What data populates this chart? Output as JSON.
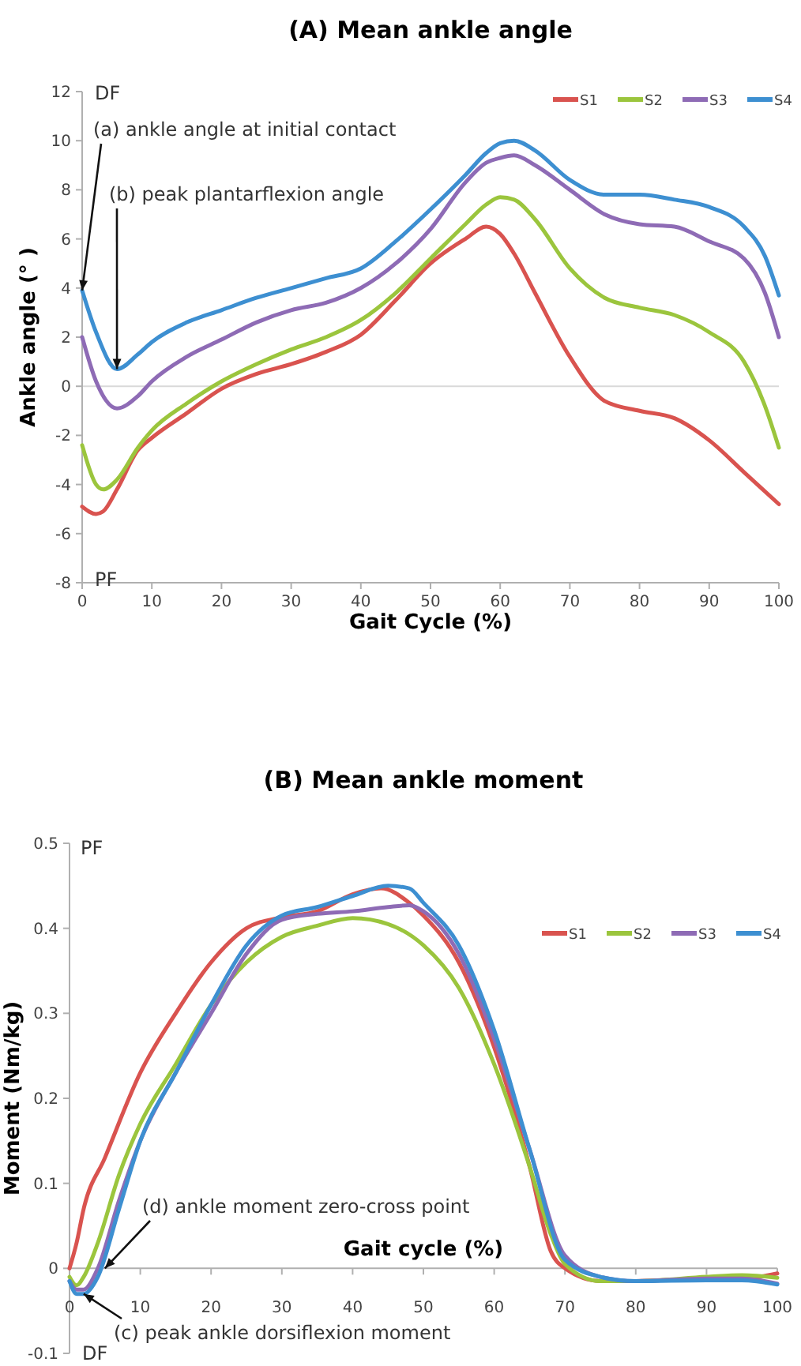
{
  "chart_data": [
    {
      "type": "line",
      "title": "(A) Mean ankle angle",
      "xlabel": "Gait Cycle (%)",
      "ylabel": "Ankle angle (° )",
      "xlim": [
        0,
        100
      ],
      "xticks": [
        0,
        10,
        20,
        30,
        40,
        50,
        60,
        70,
        80,
        90,
        100
      ],
      "ylim": [
        -8,
        12
      ],
      "yticks": [
        -8,
        -6,
        -4,
        -2,
        0,
        2,
        4,
        6,
        8,
        10,
        12
      ],
      "grid": false,
      "legend": "top right",
      "marker": "none",
      "line_style": "solid",
      "ref_lines": [
        {
          "axis": "y",
          "value": 0,
          "color": "#d9d9d9"
        }
      ],
      "annotations": [
        "DF",
        "PF",
        {
          "text": "(a) ankle angle at initial contact",
          "x": 0,
          "y": 3.9
        },
        {
          "text": "(b) peak plantarflexion angle",
          "x": 5,
          "y": 0.7
        }
      ],
      "series": [
        {
          "name": "S1",
          "color": "#d9534f",
          "x": [
            0,
            2,
            3,
            5,
            8,
            10,
            15,
            20,
            25,
            30,
            35,
            40,
            45,
            50,
            55,
            58,
            60,
            62,
            65,
            70,
            75,
            80,
            85,
            90,
            95,
            100
          ],
          "values": [
            -4.9,
            -5.2,
            -5.1,
            -4.2,
            -2.6,
            -2.1,
            -1.1,
            -0.1,
            0.5,
            0.9,
            1.4,
            2.1,
            3.5,
            5.0,
            6.0,
            6.5,
            6.2,
            5.4,
            3.8,
            1.2,
            -0.6,
            -1.0,
            -1.3,
            -2.2,
            -3.5,
            -4.8
          ]
        },
        {
          "name": "S2",
          "color": "#9bc53d",
          "x": [
            0,
            2,
            3,
            5,
            8,
            10,
            15,
            20,
            25,
            30,
            35,
            40,
            45,
            50,
            55,
            58,
            60,
            62,
            65,
            70,
            75,
            80,
            85,
            90,
            95,
            98,
            100
          ],
          "values": [
            -2.4,
            -4.0,
            -4.2,
            -3.8,
            -2.5,
            -1.8,
            -0.7,
            0.2,
            0.9,
            1.5,
            2.0,
            2.7,
            3.8,
            5.2,
            6.6,
            7.4,
            7.7,
            7.6,
            6.8,
            4.8,
            3.6,
            3.2,
            2.9,
            2.2,
            1.0,
            -0.8,
            -2.5
          ]
        },
        {
          "name": "S3",
          "color": "#8e6bb5",
          "x": [
            0,
            2,
            5,
            8,
            10,
            15,
            20,
            25,
            30,
            35,
            40,
            45,
            50,
            55,
            58,
            60,
            62,
            65,
            70,
            75,
            80,
            85,
            90,
            95,
            98,
            100
          ],
          "values": [
            2.0,
            0.2,
            -0.9,
            -0.4,
            0.2,
            1.2,
            1.9,
            2.6,
            3.1,
            3.4,
            4.0,
            5.0,
            6.4,
            8.3,
            9.1,
            9.3,
            9.4,
            9.0,
            8.0,
            7.0,
            6.6,
            6.5,
            5.9,
            5.2,
            3.8,
            2.0
          ]
        },
        {
          "name": "S4",
          "color": "#3d8fd1",
          "x": [
            0,
            2,
            5,
            8,
            10,
            15,
            20,
            25,
            30,
            35,
            40,
            45,
            50,
            55,
            58,
            60,
            62,
            65,
            70,
            75,
            80,
            85,
            90,
            95,
            98,
            100
          ],
          "values": [
            3.9,
            2.2,
            0.7,
            1.3,
            1.8,
            2.6,
            3.1,
            3.6,
            4.0,
            4.4,
            4.8,
            5.9,
            7.2,
            8.6,
            9.5,
            9.9,
            10.0,
            9.6,
            8.4,
            7.8,
            7.8,
            7.6,
            7.3,
            6.5,
            5.3,
            3.7
          ]
        }
      ]
    },
    {
      "type": "line",
      "title": "(B) Mean ankle moment",
      "xlabel": "Gait cycle (%)",
      "ylabel": "Moment (Nm/kg)",
      "xlim": [
        0,
        100
      ],
      "xticks": [
        0,
        10,
        20,
        30,
        40,
        50,
        60,
        70,
        80,
        90,
        100
      ],
      "ylim": [
        -0.1,
        0.5
      ],
      "yticks": [
        -0.1,
        0,
        0.1,
        0.2,
        0.3,
        0.4,
        0.5
      ],
      "grid": false,
      "legend": "right",
      "marker": "none",
      "line_style": "solid",
      "annotations": [
        "PF",
        "DF",
        {
          "text": "(c) peak ankle dorsiflexion moment",
          "x": 2,
          "y": -0.03
        },
        {
          "text": "(d) ankle moment zero-cross point",
          "x": 5,
          "y": 0
        }
      ],
      "series": [
        {
          "name": "S1",
          "color": "#d9534f",
          "x": [
            0,
            1,
            2,
            5,
            10,
            15,
            20,
            25,
            30,
            35,
            40,
            44,
            48,
            50,
            55,
            60,
            65,
            68,
            70,
            75,
            80,
            90,
            95,
            100
          ],
          "values": [
            0,
            0.03,
            0.07,
            0.13,
            0.23,
            0.3,
            0.36,
            0.4,
            0.413,
            0.42,
            0.44,
            0.447,
            0.43,
            0.415,
            0.36,
            0.26,
            0.12,
            0.02,
            0,
            -0.015,
            -0.015,
            -0.012,
            -0.012,
            -0.006
          ]
        },
        {
          "name": "S2",
          "color": "#9bc53d",
          "x": [
            0,
            1,
            2,
            4,
            7,
            10,
            15,
            20,
            25,
            30,
            35,
            40,
            45,
            50,
            55,
            60,
            65,
            68,
            70,
            75,
            80,
            90,
            95,
            100
          ],
          "values": [
            -0.01,
            -0.02,
            -0.01,
            0.03,
            0.11,
            0.17,
            0.24,
            0.31,
            0.36,
            0.39,
            0.403,
            0.412,
            0.405,
            0.38,
            0.33,
            0.24,
            0.12,
            0.04,
            0.005,
            -0.015,
            -0.015,
            -0.01,
            -0.008,
            -0.011
          ]
        },
        {
          "name": "S3",
          "color": "#8e6bb5",
          "x": [
            0,
            1,
            2,
            4,
            7,
            10,
            15,
            20,
            25,
            30,
            35,
            40,
            45,
            48,
            50,
            55,
            60,
            65,
            70,
            75,
            80,
            90,
            95,
            100
          ],
          "values": [
            -0.015,
            -0.025,
            -0.025,
            0,
            0.08,
            0.15,
            0.23,
            0.3,
            0.37,
            0.41,
            0.417,
            0.42,
            0.425,
            0.427,
            0.42,
            0.37,
            0.27,
            0.14,
            0.015,
            -0.01,
            -0.015,
            -0.012,
            -0.012,
            -0.018
          ]
        },
        {
          "name": "S4",
          "color": "#3d8fd1",
          "x": [
            0,
            1,
            2,
            4,
            7,
            10,
            15,
            20,
            25,
            30,
            35,
            40,
            45,
            48,
            50,
            55,
            60,
            65,
            70,
            75,
            80,
            90,
            95,
            100
          ],
          "values": [
            -0.015,
            -0.03,
            -0.03,
            -0.01,
            0.07,
            0.15,
            0.23,
            0.31,
            0.38,
            0.415,
            0.425,
            0.438,
            0.45,
            0.447,
            0.43,
            0.38,
            0.28,
            0.14,
            0.01,
            -0.01,
            -0.015,
            -0.014,
            -0.014,
            -0.019
          ]
        }
      ]
    }
  ]
}
